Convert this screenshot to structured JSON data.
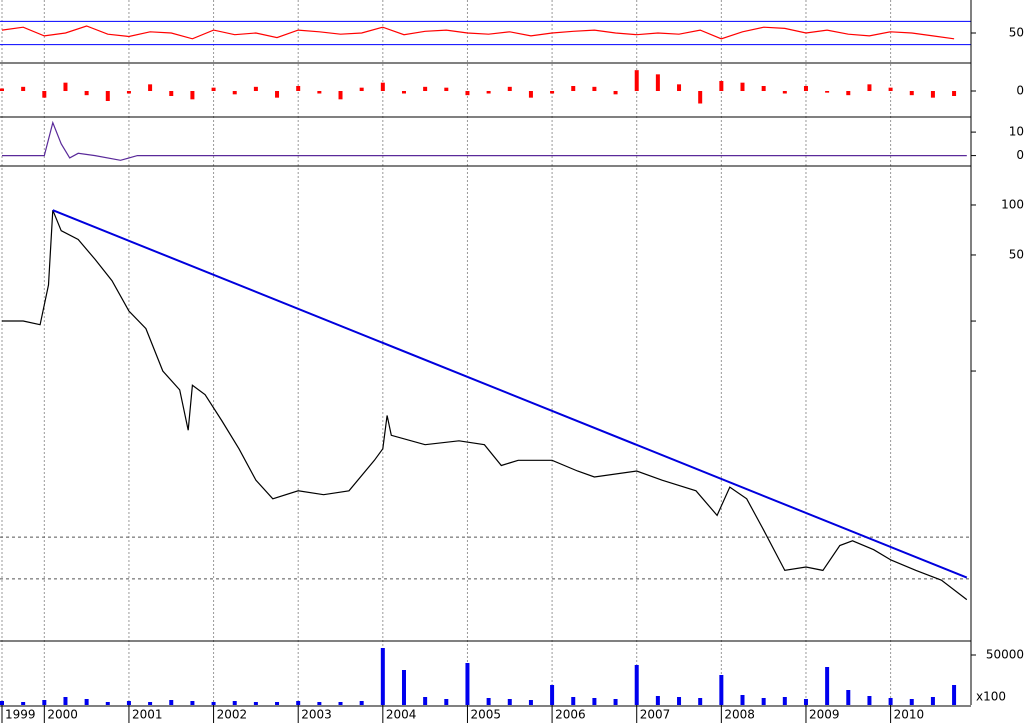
{
  "chart_data": [
    {
      "type": "line",
      "color": "#ff0000",
      "x": [
        1999.5,
        1999.75,
        2000,
        2000.25,
        2000.5,
        2000.75,
        2001,
        2001.25,
        2001.5,
        2001.75,
        2002,
        2002.25,
        2002.5,
        2002.75,
        2003,
        2003.25,
        2003.5,
        2003.75,
        2004,
        2004.25,
        2004.5,
        2004.75,
        2005,
        2005.25,
        2005.5,
        2005.75,
        2006,
        2006.25,
        2006.5,
        2006.75,
        2007,
        2007.25,
        2007.5,
        2007.75,
        2008,
        2008.25,
        2008.5,
        2008.75,
        2009,
        2009.25,
        2009.5,
        2009.75,
        2010,
        2010.25,
        2010.5,
        2010.75
      ],
      "values": [
        55,
        60,
        45,
        50,
        62,
        48,
        44,
        52,
        50,
        40,
        55,
        47,
        50,
        42,
        55,
        52,
        48,
        50,
        60,
        47,
        53,
        55,
        50,
        48,
        52,
        45,
        50,
        53,
        55,
        50,
        47,
        50,
        48,
        55,
        40,
        52,
        60,
        58,
        50,
        55,
        48,
        45,
        52,
        50,
        45,
        40
      ],
      "xlim": [
        1999.5,
        2010.95
      ],
      "ylim": [
        0,
        100
      ],
      "yticks": [
        50
      ],
      "hlines": [
        30,
        70
      ],
      "hline_color": "#0000ff"
    },
    {
      "type": "bar",
      "color": "#ff0000",
      "x": [
        1999.5,
        1999.75,
        2000,
        2000.25,
        2000.5,
        2000.75,
        2001,
        2001.25,
        2001.5,
        2001.75,
        2002,
        2002.25,
        2002.5,
        2002.75,
        2003,
        2003.25,
        2003.5,
        2003.75,
        2004,
        2004.25,
        2004.5,
        2004.75,
        2005,
        2005.25,
        2005.5,
        2005.75,
        2006,
        2006.25,
        2006.5,
        2006.75,
        2007,
        2007.25,
        2007.5,
        2007.75,
        2008,
        2008.25,
        2008.5,
        2008.75,
        2009,
        2009.25,
        2009.5,
        2009.75,
        2010,
        2010.25,
        2010.5,
        2010.75
      ],
      "values": [
        3,
        5,
        -8,
        10,
        -5,
        -12,
        -3,
        8,
        -6,
        -10,
        4,
        -4,
        5,
        -8,
        6,
        -3,
        -10,
        4,
        10,
        -3,
        5,
        4,
        -5,
        -3,
        5,
        -8,
        -3,
        6,
        5,
        -4,
        25,
        20,
        8,
        -15,
        12,
        10,
        6,
        -3,
        6,
        -2,
        -5,
        8,
        4,
        -5,
        -8,
        -6
      ],
      "xlim": [
        1999.5,
        2010.95
      ],
      "ylim": [
        -30,
        30
      ],
      "yticks": [
        0
      ]
    },
    {
      "type": "line",
      "color": "#5a2a9a",
      "x": [
        1999.5,
        2000,
        2000.1,
        2000.2,
        2000.3,
        2000.4,
        2000.6,
        2000.9,
        2001.1,
        2001.5,
        2003,
        2010.9
      ],
      "values": [
        0,
        0,
        14,
        5,
        -1,
        1,
        0,
        -2,
        0,
        0,
        0,
        0
      ],
      "xlim": [
        1999.5,
        2010.95
      ],
      "ylim": [
        -4,
        16
      ],
      "yticks": [
        0,
        10
      ]
    },
    {
      "type": "line",
      "color": "#000000",
      "log_scale": true,
      "x": [
        1999.5,
        1999.75,
        1999.95,
        2000.05,
        2000.1,
        2000.2,
        2000.4,
        2000.6,
        2000.8,
        2001.0,
        2001.2,
        2001.4,
        2001.6,
        2001.7,
        2001.75,
        2001.9,
        2002.1,
        2002.3,
        2002.5,
        2002.7,
        2003.0,
        2003.3,
        2003.6,
        2003.9,
        2004.0,
        2004.05,
        2004.1,
        2004.5,
        2004.9,
        2005.2,
        2005.4,
        2005.6,
        2006.0,
        2006.3,
        2006.5,
        2007.0,
        2007.3,
        2007.7,
        2007.95,
        2008.1,
        2008.3,
        2008.5,
        2008.75,
        2009.0,
        2009.2,
        2009.4,
        2009.55,
        2009.8,
        2010.0,
        2010.3,
        2010.6,
        2010.9
      ],
      "values": [
        20,
        20,
        19,
        33,
        93,
        70,
        62,
        47,
        35,
        23,
        18,
        10,
        7.7,
        4.4,
        8.2,
        7.2,
        5,
        3.4,
        2.2,
        1.7,
        1.9,
        1.8,
        1.9,
        2.9,
        3.4,
        5.4,
        4.1,
        3.6,
        3.8,
        3.6,
        2.7,
        2.9,
        2.9,
        2.5,
        2.3,
        2.5,
        2.2,
        1.9,
        1.35,
        2.0,
        1.7,
        1.1,
        0.63,
        0.66,
        0.63,
        0.89,
        0.95,
        0.84,
        0.73,
        0.63,
        0.55,
        0.42
      ],
      "trendline": {
        "x": [
          2000.1,
          2010.9
        ],
        "values": [
          93,
          0.57
        ],
        "color": "#0000dd"
      },
      "xlim": [
        1999.5,
        2010.95
      ],
      "ylim": [
        0.24,
        167
      ],
      "yticks": [
        50,
        100
      ],
      "yminor_ticks": [
        10,
        20
      ],
      "hlines": [
        0.56,
        1
      ],
      "hline_color": "#555555"
    },
    {
      "type": "bar",
      "color": "#0000ee",
      "x": [
        1999.5,
        1999.75,
        2000,
        2000.25,
        2000.5,
        2000.75,
        2001,
        2001.25,
        2001.5,
        2001.75,
        2002,
        2002.25,
        2002.5,
        2002.75,
        2003,
        2003.25,
        2003.5,
        2003.75,
        2004,
        2004.25,
        2004.5,
        2004.75,
        2005,
        2005.25,
        2005.5,
        2005.75,
        2006,
        2006.25,
        2006.5,
        2006.75,
        2007,
        2007.25,
        2007.5,
        2007.75,
        2008,
        2008.25,
        2008.5,
        2008.75,
        2009,
        2009.25,
        2009.5,
        2009.75,
        2010,
        2010.25,
        2010.5,
        2010.75
      ],
      "values": [
        4000,
        3000,
        5000,
        8000,
        6000,
        3000,
        4000,
        3000,
        5000,
        4000,
        3000,
        4000,
        3000,
        3000,
        4000,
        3000,
        3000,
        4000,
        57000,
        35000,
        8000,
        6000,
        42000,
        7000,
        6000,
        5000,
        20000,
        8000,
        7000,
        6000,
        40000,
        9000,
        8000,
        7000,
        30000,
        10000,
        7000,
        8000,
        6000,
        38000,
        15000,
        9000,
        7000,
        6000,
        8000,
        20000
      ],
      "xlim": [
        1999.5,
        2010.95
      ],
      "ylim": [
        0,
        60000
      ],
      "yticks": [
        50000
      ],
      "unit_label": "x100",
      "xticks": [
        {
          "value": 1999.5,
          "label": "1999"
        },
        2000,
        2001,
        2002,
        2003,
        2004,
        2005,
        2006,
        2007,
        2008,
        2009,
        2010
      ]
    }
  ]
}
